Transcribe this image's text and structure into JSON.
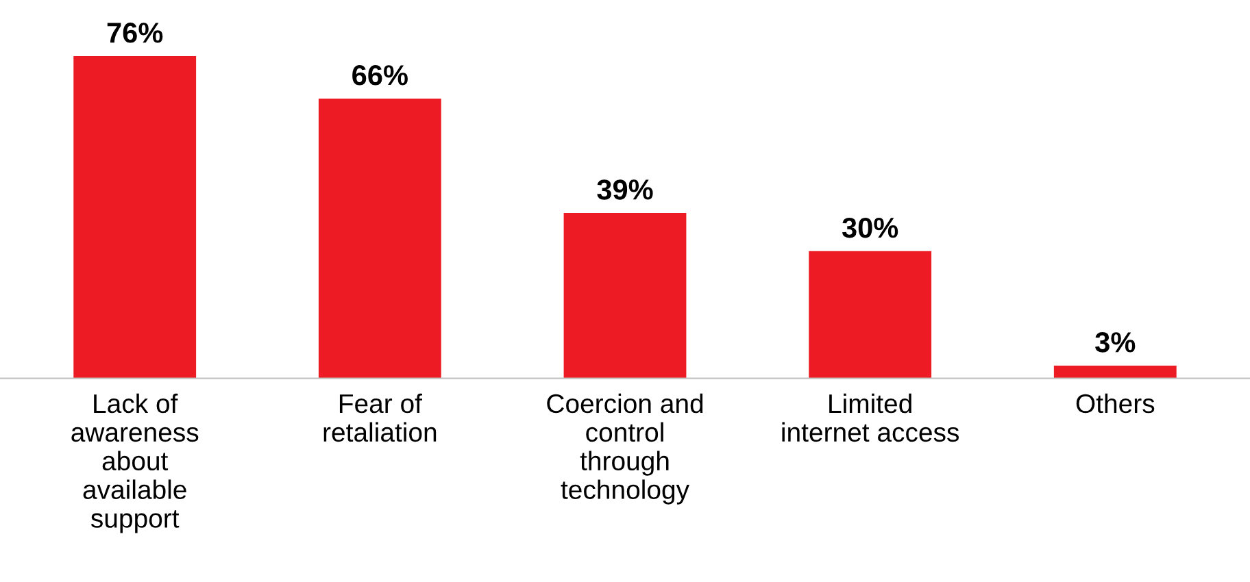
{
  "chart_data": {
    "type": "bar",
    "categories": [
      "Lack of\nawareness\nabout\navailable\nsupport",
      "Fear of\nretaliation",
      "Coercion and\ncontrol\nthrough\ntechnology",
      "Limited\ninternet access",
      "Others"
    ],
    "values": [
      76,
      66,
      39,
      30,
      3
    ],
    "value_labels": [
      "76%",
      "66%",
      "39%",
      "30%",
      "3%"
    ],
    "color": "#ed1c24",
    "grid": false,
    "legend": false
  }
}
